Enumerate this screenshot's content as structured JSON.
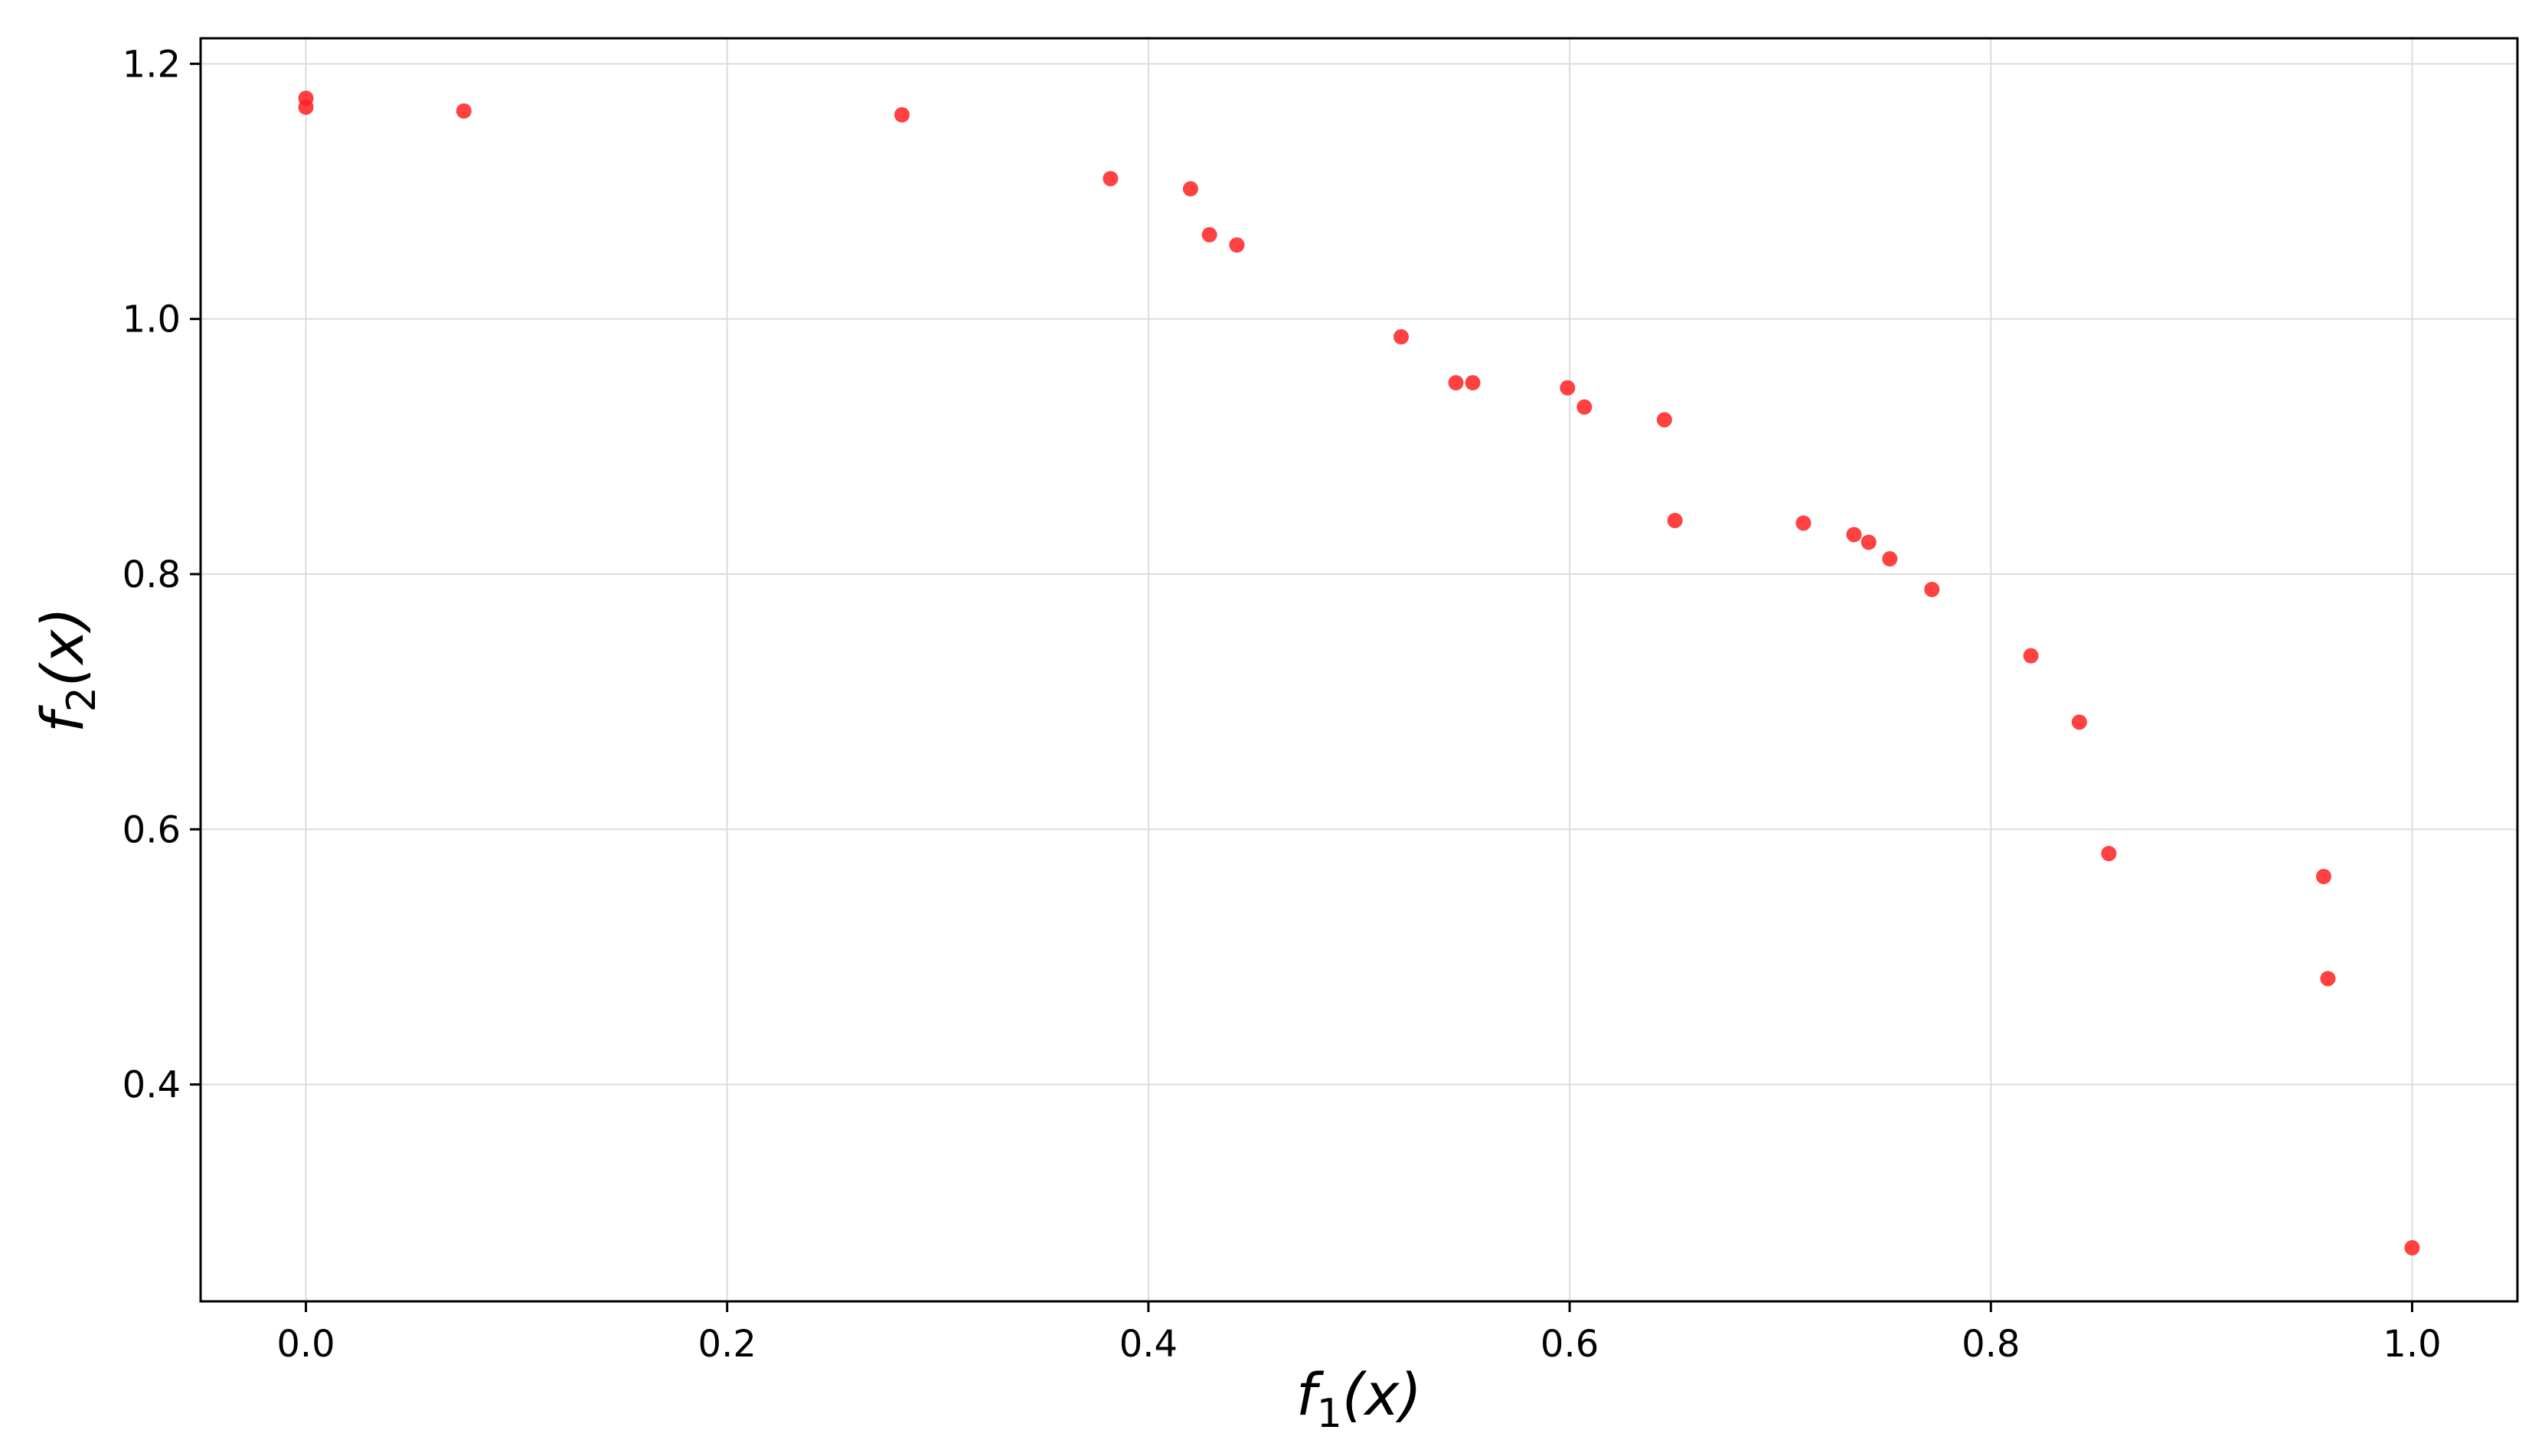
{
  "chart_data": {
    "type": "scatter",
    "xlabel": {
      "base": "f",
      "sub": "1",
      "arg": "(x)"
    },
    "ylabel": {
      "base": "f",
      "sub": "2",
      "arg": "(x)"
    },
    "xlim": [
      -0.05,
      1.05
    ],
    "ylim": [
      0.23,
      1.22
    ],
    "xticks": [
      0.0,
      0.2,
      0.4,
      0.6,
      0.8,
      1.0
    ],
    "xtick_labels": [
      "0.0",
      "0.2",
      "0.4",
      "0.6",
      "0.8",
      "1.0"
    ],
    "yticks": [
      0.4,
      0.6,
      0.8,
      1.0,
      1.2
    ],
    "ytick_labels": [
      "0.4",
      "0.6",
      "0.8",
      "1.0",
      "1.2"
    ],
    "grid": true,
    "marker_color": "#ff2020",
    "points": [
      {
        "x": 0.0,
        "y": 1.173
      },
      {
        "x": 0.0,
        "y": 1.166
      },
      {
        "x": 0.075,
        "y": 1.163
      },
      {
        "x": 0.283,
        "y": 1.16
      },
      {
        "x": 0.382,
        "y": 1.11
      },
      {
        "x": 0.42,
        "y": 1.102
      },
      {
        "x": 0.429,
        "y": 1.066
      },
      {
        "x": 0.442,
        "y": 1.058
      },
      {
        "x": 0.52,
        "y": 0.986
      },
      {
        "x": 0.546,
        "y": 0.95
      },
      {
        "x": 0.554,
        "y": 0.95
      },
      {
        "x": 0.599,
        "y": 0.946
      },
      {
        "x": 0.607,
        "y": 0.931
      },
      {
        "x": 0.645,
        "y": 0.921
      },
      {
        "x": 0.65,
        "y": 0.842
      },
      {
        "x": 0.711,
        "y": 0.84
      },
      {
        "x": 0.735,
        "y": 0.831
      },
      {
        "x": 0.742,
        "y": 0.825
      },
      {
        "x": 0.752,
        "y": 0.812
      },
      {
        "x": 0.772,
        "y": 0.788
      },
      {
        "x": 0.819,
        "y": 0.736
      },
      {
        "x": 0.842,
        "y": 0.684
      },
      {
        "x": 0.856,
        "y": 0.581
      },
      {
        "x": 0.958,
        "y": 0.563
      },
      {
        "x": 0.96,
        "y": 0.483
      },
      {
        "x": 1.0,
        "y": 0.272
      }
    ]
  }
}
